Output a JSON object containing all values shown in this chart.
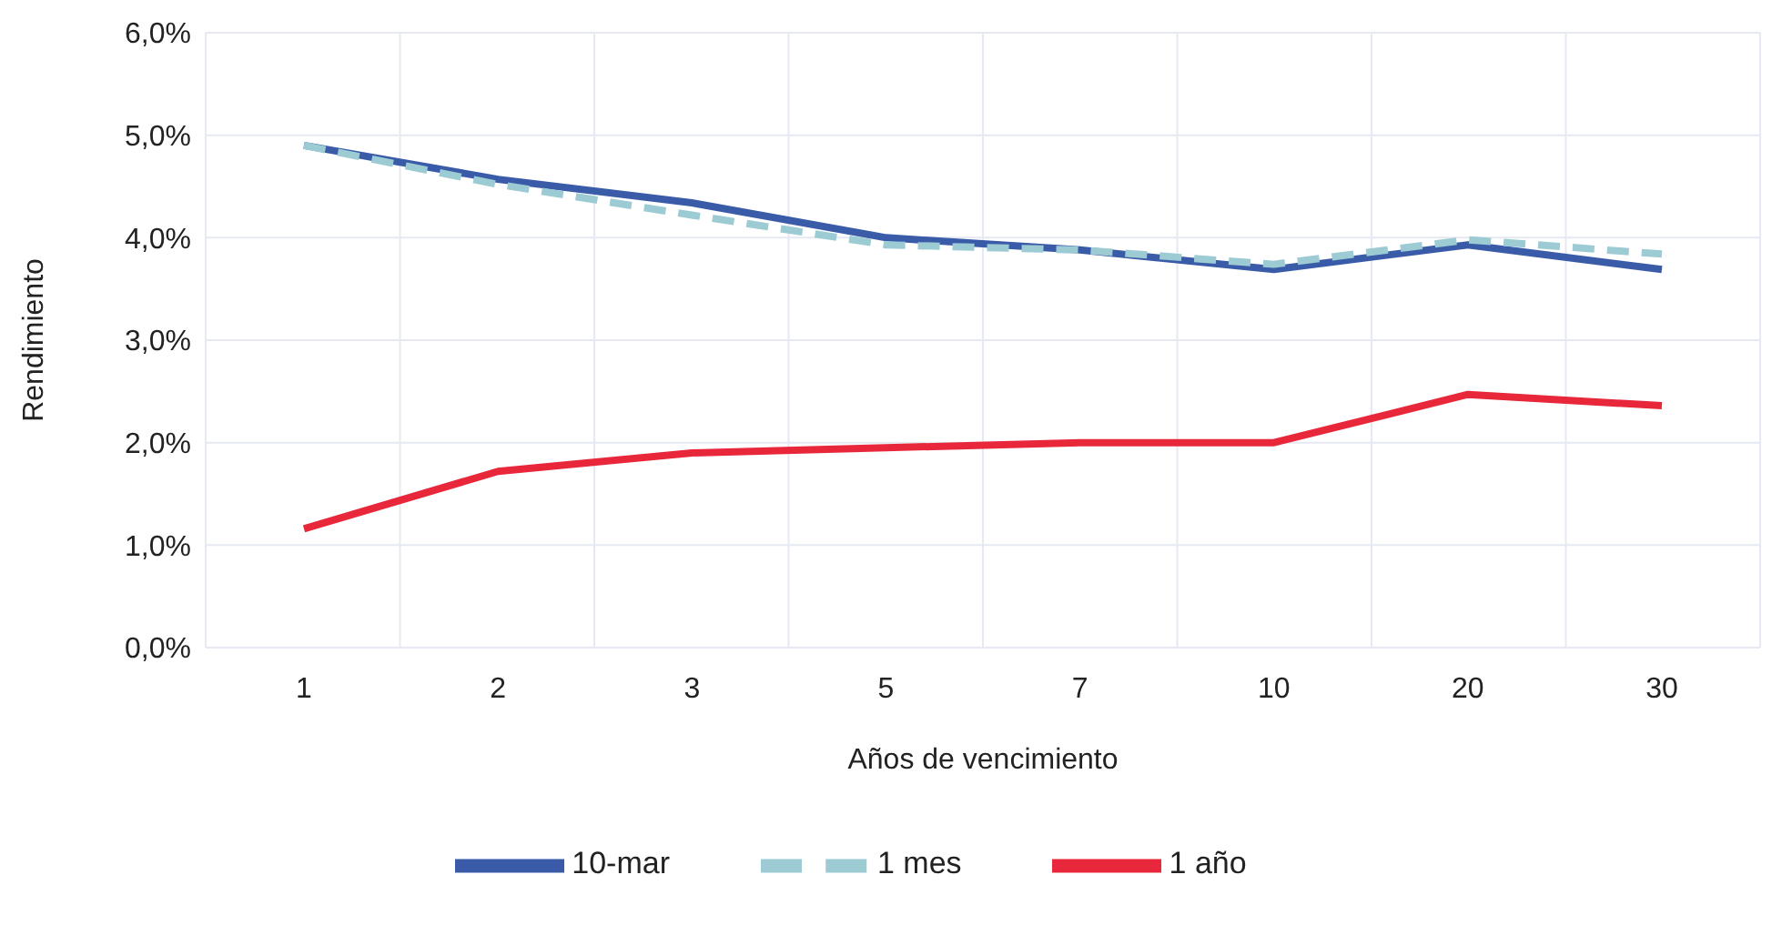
{
  "chart_data": {
    "type": "line",
    "xlabel": "Años de vencimiento",
    "ylabel": "Rendimiento",
    "categories": [
      "1",
      "2",
      "3",
      "5",
      "7",
      "10",
      "20",
      "30"
    ],
    "series": [
      {
        "name": "10-mar",
        "color": "#3a5ba8",
        "line_style": "solid",
        "values": [
          4.9,
          4.57,
          4.34,
          4.0,
          3.88,
          3.69,
          3.93,
          3.69
        ]
      },
      {
        "name": "1 mes",
        "color": "#9ccbd3",
        "line_style": "dashed",
        "values": [
          4.9,
          4.52,
          4.22,
          3.93,
          3.88,
          3.74,
          3.98,
          3.84
        ]
      },
      {
        "name": "1 año",
        "color": "#e8283a",
        "line_style": "solid",
        "values": [
          1.16,
          1.72,
          1.9,
          1.95,
          2.0,
          2.0,
          2.47,
          2.36
        ]
      }
    ],
    "ylim": [
      0,
      6
    ],
    "yticks": [
      {
        "value": 0,
        "label": "0,0%"
      },
      {
        "value": 1,
        "label": "1,0%"
      },
      {
        "value": 2,
        "label": "2,0%"
      },
      {
        "value": 3,
        "label": "3,0%"
      },
      {
        "value": 4,
        "label": "4,0%"
      },
      {
        "value": 5,
        "label": "5,0%"
      },
      {
        "value": 6,
        "label": "6,0%"
      }
    ],
    "grid": true,
    "legend": "bottom",
    "marker": "none"
  }
}
